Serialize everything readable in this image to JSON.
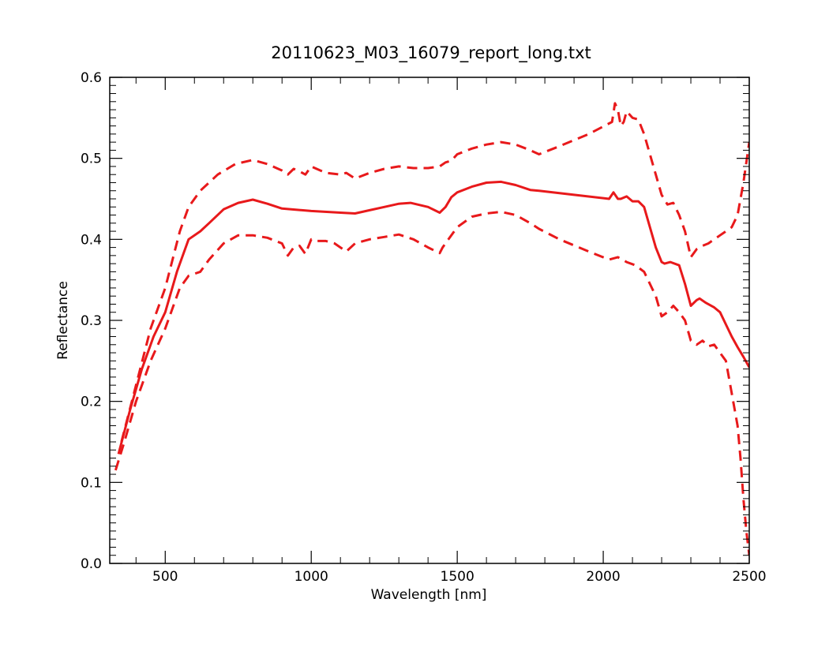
{
  "chart_data": {
    "type": "line",
    "title": "20110623_M03_16079_report_long.txt",
    "xlabel": "Wavelength [nm]",
    "ylabel": "Reflectance",
    "xlim": [
      310,
      2500
    ],
    "ylim": [
      0.0,
      0.6
    ],
    "xticks": [
      500,
      1000,
      1500,
      2000,
      2500
    ],
    "yticks": [
      0.0,
      0.1,
      0.2,
      0.3,
      0.4,
      0.5,
      0.6
    ],
    "xtick_labels": [
      "500",
      "1000",
      "1500",
      "2000",
      "2500"
    ],
    "ytick_labels": [
      "0.0",
      "0.1",
      "0.2",
      "0.3",
      "0.4",
      "0.5",
      "0.6"
    ],
    "grid": false,
    "legend": "none",
    "series_color": "#e8191b",
    "series": [
      {
        "style": "dashed",
        "x": [
          350,
          400,
          450,
          500,
          550,
          580,
          620,
          680,
          740,
          800,
          850,
          900,
          920,
          940,
          960,
          980,
          1000,
          1050,
          1100,
          1120,
          1150,
          1200,
          1250,
          1300,
          1350,
          1400,
          1440,
          1460,
          1480,
          1500,
          1550,
          1600,
          1650,
          1700,
          1750,
          1780,
          1850,
          1950,
          2030,
          2040,
          2050,
          2060,
          2070,
          2080,
          2100,
          2120,
          2140,
          2180,
          2200,
          2220,
          2240,
          2260,
          2280,
          2300,
          2320,
          2340,
          2360,
          2380,
          2400,
          2420,
          2440,
          2460,
          2480,
          2500
        ],
        "y": [
          0.15,
          0.22,
          0.29,
          0.34,
          0.41,
          0.44,
          0.46,
          0.48,
          0.493,
          0.498,
          0.493,
          0.485,
          0.48,
          0.487,
          0.484,
          0.48,
          0.49,
          0.482,
          0.48,
          0.482,
          0.475,
          0.482,
          0.487,
          0.49,
          0.488,
          0.488,
          0.49,
          0.495,
          0.497,
          0.505,
          0.512,
          0.517,
          0.52,
          0.517,
          0.51,
          0.505,
          0.515,
          0.53,
          0.545,
          0.568,
          0.56,
          0.54,
          0.545,
          0.558,
          0.55,
          0.548,
          0.53,
          0.48,
          0.455,
          0.443,
          0.445,
          0.43,
          0.41,
          0.378,
          0.388,
          0.392,
          0.395,
          0.4,
          0.405,
          0.41,
          0.415,
          0.43,
          0.47,
          0.52
        ]
      },
      {
        "style": "solid",
        "x": [
          340,
          380,
          420,
          460,
          500,
          540,
          580,
          620,
          650,
          700,
          750,
          800,
          850,
          900,
          1000,
          1100,
          1150,
          1200,
          1250,
          1300,
          1340,
          1400,
          1440,
          1460,
          1480,
          1500,
          1550,
          1600,
          1650,
          1700,
          1750,
          1780,
          1900,
          2020,
          2035,
          2050,
          2060,
          2080,
          2100,
          2120,
          2140,
          2160,
          2180,
          2200,
          2210,
          2230,
          2260,
          2280,
          2300,
          2320,
          2330,
          2350,
          2380,
          2400,
          2420,
          2440,
          2460,
          2480,
          2500
        ],
        "y": [
          0.135,
          0.19,
          0.24,
          0.28,
          0.31,
          0.36,
          0.4,
          0.41,
          0.42,
          0.437,
          0.445,
          0.449,
          0.444,
          0.438,
          0.435,
          0.433,
          0.432,
          0.436,
          0.44,
          0.444,
          0.445,
          0.44,
          0.433,
          0.44,
          0.452,
          0.458,
          0.465,
          0.47,
          0.471,
          0.467,
          0.461,
          0.46,
          0.455,
          0.45,
          0.458,
          0.45,
          0.45,
          0.453,
          0.447,
          0.447,
          0.44,
          0.415,
          0.39,
          0.372,
          0.37,
          0.372,
          0.368,
          0.345,
          0.318,
          0.325,
          0.327,
          0.322,
          0.316,
          0.31,
          0.295,
          0.28,
          0.267,
          0.255,
          0.242
        ]
      },
      {
        "style": "dashed",
        "x": [
          330,
          360,
          400,
          450,
          500,
          550,
          580,
          620,
          650,
          700,
          750,
          800,
          850,
          900,
          920,
          940,
          960,
          980,
          1000,
          1020,
          1050,
          1080,
          1100,
          1120,
          1150,
          1200,
          1250,
          1300,
          1350,
          1400,
          1440,
          1450,
          1470,
          1500,
          1550,
          1600,
          1650,
          1700,
          1750,
          1780,
          1850,
          1950,
          2020,
          2050,
          2080,
          2110,
          2140,
          2180,
          2200,
          2220,
          2240,
          2260,
          2280,
          2300,
          2320,
          2340,
          2360,
          2380,
          2400,
          2420,
          2430,
          2440,
          2450,
          2460,
          2470,
          2480,
          2490,
          2500
        ],
        "y": [
          0.115,
          0.15,
          0.2,
          0.25,
          0.29,
          0.34,
          0.355,
          0.36,
          0.375,
          0.395,
          0.405,
          0.405,
          0.402,
          0.395,
          0.38,
          0.39,
          0.392,
          0.382,
          0.4,
          0.398,
          0.398,
          0.395,
          0.39,
          0.385,
          0.395,
          0.4,
          0.403,
          0.406,
          0.4,
          0.39,
          0.383,
          0.39,
          0.4,
          0.415,
          0.428,
          0.432,
          0.434,
          0.43,
          0.42,
          0.413,
          0.4,
          0.385,
          0.375,
          0.378,
          0.372,
          0.368,
          0.36,
          0.33,
          0.305,
          0.31,
          0.318,
          0.31,
          0.3,
          0.275,
          0.27,
          0.275,
          0.268,
          0.27,
          0.26,
          0.25,
          0.23,
          0.21,
          0.19,
          0.17,
          0.13,
          0.08,
          0.04,
          0.01
        ]
      }
    ]
  }
}
